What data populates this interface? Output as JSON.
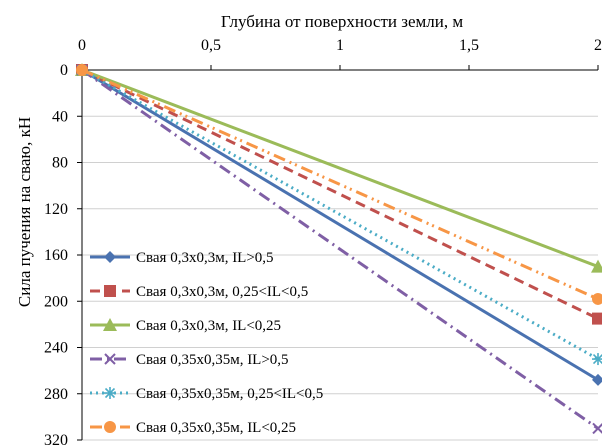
{
  "chart_data": {
    "type": "line",
    "xlabel": "Глубина от поверхности земли, м",
    "ylabel": "Сила пучения на сваю, кН",
    "x_axis_position": "top",
    "y_axis_inverted": true,
    "xlim": [
      0,
      2
    ],
    "ylim": [
      0,
      320
    ],
    "x_ticks": [
      0,
      0.5,
      1,
      1.5,
      2
    ],
    "x_tick_labels": [
      "0",
      "0,5",
      "1",
      "1,5",
      "2"
    ],
    "y_ticks": [
      0,
      40,
      80,
      120,
      160,
      200,
      240,
      280,
      320
    ],
    "y_tick_labels": [
      "0",
      "40",
      "80",
      "120",
      "160",
      "200",
      "240",
      "280",
      "320"
    ],
    "grid": "horizontal",
    "legend_position": "bottom-left",
    "series": [
      {
        "name": "Свая 0,3х0,3м, IL>0,5",
        "x": [
          0,
          2
        ],
        "y": [
          0,
          268
        ],
        "color": "#4a72b0",
        "dash": "solid",
        "marker": "diamond"
      },
      {
        "name": "Свая 0,3х0,3м, 0,25<IL<0,5",
        "x": [
          0,
          2
        ],
        "y": [
          0,
          215
        ],
        "color": "#c0504d",
        "dash": "dashed",
        "marker": "square"
      },
      {
        "name": "Свая 0,3х0,3м, IL<0,25",
        "x": [
          0,
          2
        ],
        "y": [
          0,
          170
        ],
        "color": "#9bbb59",
        "dash": "solid",
        "marker": "triangle"
      },
      {
        "name": "Свая 0,35х0,35м, IL>0,5",
        "x": [
          0,
          2
        ],
        "y": [
          0,
          310
        ],
        "color": "#7f5fa5",
        "dash": "dashdot",
        "marker": "x"
      },
      {
        "name": "Свая 0,35х0,35м, 0,25<IL<0,5",
        "x": [
          0,
          2
        ],
        "y": [
          0,
          250
        ],
        "color": "#4bacc6",
        "dash": "dotted",
        "marker": "star"
      },
      {
        "name": "Свая 0,35х0,35м, IL<0,25",
        "x": [
          0,
          2
        ],
        "y": [
          0,
          198
        ],
        "color": "#f79646",
        "dash": "dashdotdot",
        "marker": "circle"
      }
    ]
  }
}
